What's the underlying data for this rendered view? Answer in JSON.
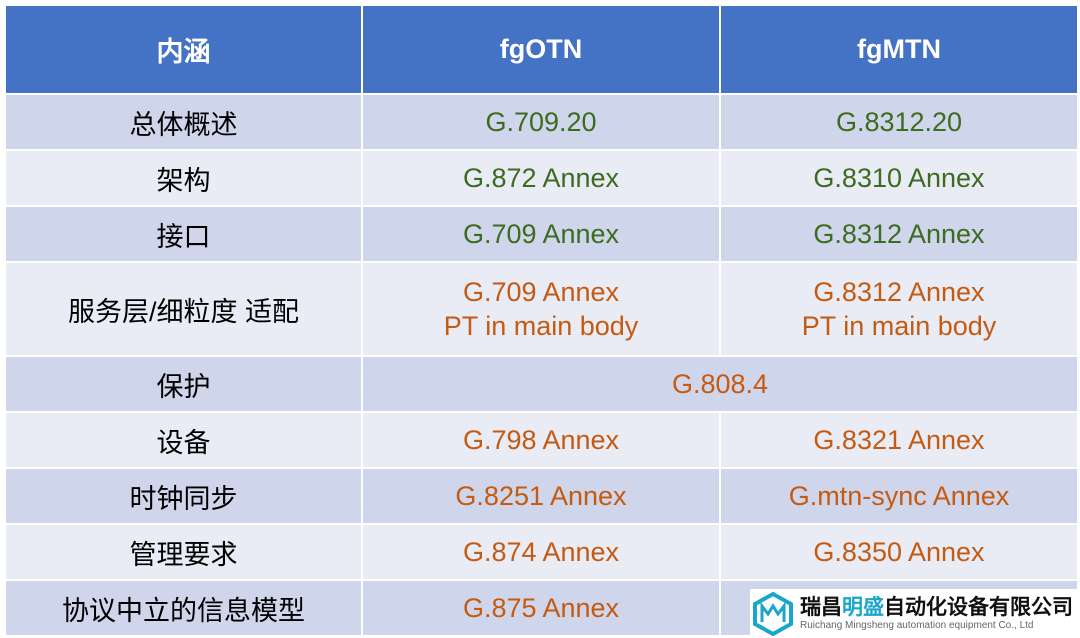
{
  "header": {
    "col1": "内涵",
    "col2": "fgOTN",
    "col3": "fgMTN"
  },
  "rows": [
    {
      "label": "总体概述",
      "otn": [
        "G.709.20"
      ],
      "mtn": [
        "G.8312.20"
      ],
      "color": "green"
    },
    {
      "label": "架构",
      "otn": [
        "G.872 Annex"
      ],
      "mtn": [
        "G.8310 Annex"
      ],
      "color": "green"
    },
    {
      "label": "接口",
      "otn": [
        "G.709 Annex"
      ],
      "mtn": [
        "G.8312 Annex"
      ],
      "color": "green"
    },
    {
      "label": "服务层/细粒度 适配",
      "otn": [
        "G.709 Annex",
        "PT in main body"
      ],
      "mtn": [
        "G.8312 Annex",
        "PT in main body"
      ],
      "color": "orange"
    },
    {
      "label": "保护",
      "merged": "G.808.4",
      "color": "orange"
    },
    {
      "label": "设备",
      "otn": [
        "G.798 Annex"
      ],
      "mtn": [
        "G.8321 Annex"
      ],
      "color": "orange"
    },
    {
      "label": "时钟同步",
      "otn": [
        "G.8251 Annex"
      ],
      "mtn": [
        "G.mtn-sync Annex"
      ],
      "color": "orange"
    },
    {
      "label": "管理要求",
      "otn": [
        "G.874 Annex"
      ],
      "mtn": [
        "G.8350 Annex"
      ],
      "color": "orange"
    },
    {
      "label": "协议中立的信息模型",
      "otn": [
        "G.875 Annex"
      ],
      "mtn": [
        ""
      ],
      "color": "orange"
    }
  ],
  "logo": {
    "name_part1": "瑞昌",
    "name_highlight": "明盛",
    "name_part2": "自动化设备有限公司",
    "english": "Ruichang Mingsheng automation equipment Co., Ltd",
    "icon": "hexagon-mm-logo-icon"
  }
}
